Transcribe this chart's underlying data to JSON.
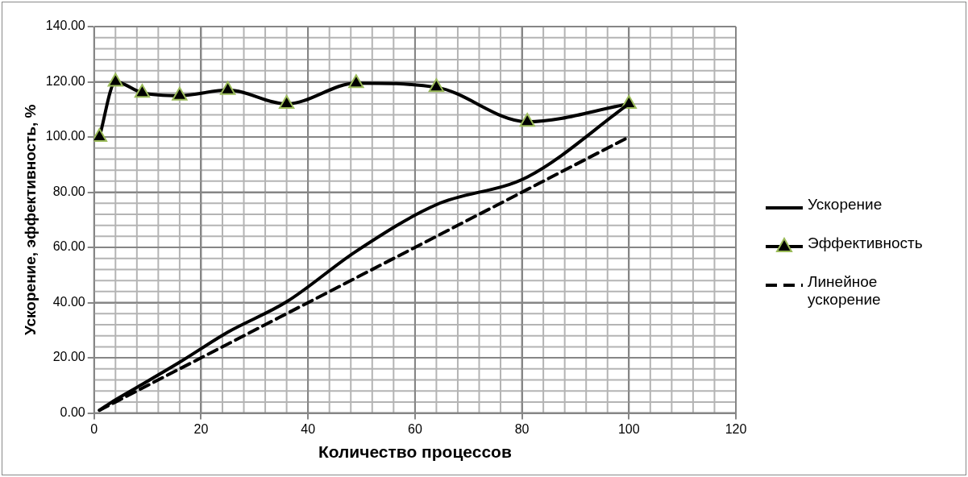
{
  "chart_data": {
    "type": "line",
    "xlabel": "Количество процессов",
    "ylabel": "Ускорение, эффективность, %",
    "xlim": [
      0,
      120
    ],
    "xticks": [
      0,
      20,
      40,
      60,
      80,
      100,
      120
    ],
    "ylim": [
      0,
      140
    ],
    "yticks": [
      {
        "value": 0,
        "label": "0.00"
      },
      {
        "value": 20,
        "label": "20.00"
      },
      {
        "value": 40,
        "label": "40.00"
      },
      {
        "value": 60,
        "label": "60.00"
      },
      {
        "value": 80,
        "label": "80.00"
      },
      {
        "value": 100,
        "label": "100.00"
      },
      {
        "value": 120,
        "label": "120.00"
      },
      {
        "value": 140,
        "label": "140.00"
      }
    ],
    "grid": true,
    "legend": "right",
    "series": [
      {
        "name": "Ускорение",
        "color": "#000000",
        "marker": "none",
        "line_style": "solid",
        "x": [
          1,
          4,
          9,
          16,
          25,
          36,
          49,
          64,
          81,
          100
        ],
        "values": [
          1,
          4.8,
          10.4,
          18.4,
          29.3,
          40.3,
          58.6,
          75.5,
          85.5,
          112
        ]
      },
      {
        "name": "Эффективность",
        "color": "#000000",
        "marker": "triangle",
        "line_style": "solid",
        "x": [
          1,
          4,
          9,
          16,
          25,
          36,
          49,
          64,
          81,
          100
        ],
        "values": [
          100,
          120,
          116,
          115,
          117,
          112,
          119.5,
          118,
          105.5,
          112
        ]
      },
      {
        "name": "Линейное ускорение",
        "color": "#000000",
        "marker": "none",
        "line_style": "dashed",
        "x": [
          1,
          4,
          9,
          16,
          25,
          36,
          49,
          64,
          81,
          100
        ],
        "values": [
          1,
          4,
          9,
          16,
          25,
          36,
          49,
          64,
          81,
          100
        ]
      }
    ]
  }
}
